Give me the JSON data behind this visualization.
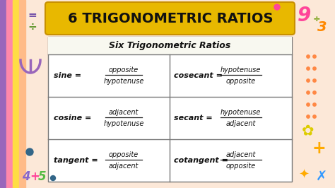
{
  "bg_color": "#fce8d8",
  "title": "6 TRIGONOMETRIC RATIOS",
  "title_bg": "#e8b800",
  "title_border": "#c89000",
  "table_header": "Six Trigonometric Ratios",
  "left_col": [
    {
      "func": "sine",
      "num": "opposite",
      "den": "hypotenuse"
    },
    {
      "func": "cosine",
      "num": "adjacent",
      "den": "hypotenuse"
    },
    {
      "func": "tangent",
      "num": "opposite",
      "den": "adjacent"
    }
  ],
  "right_col": [
    {
      "func": "cosecant",
      "num": "hypotenuse",
      "den": "opposite"
    },
    {
      "func": "secant",
      "num": "hypotenuse",
      "den": "adjacent"
    },
    {
      "func": "cotangent",
      "num": "adjacent",
      "den": "opposite"
    }
  ],
  "strip_purple": "#9966bb",
  "strip_pink": "#ff88aa",
  "strip_yellow": "#ffdd44",
  "strip_peach": "#ffbb88",
  "deco_eq_color": "#7755aa",
  "deco_div_color": "#669933",
  "arc_color": "#9966bb",
  "four_color": "#8866cc",
  "plus_color": "#ff4499",
  "five_color": "#55bb44",
  "dot_color": "#336688",
  "nine_color": "#ff4499",
  "three_color": "#ff8800",
  "div_color": "#669900",
  "dots_color": "#ff8844",
  "flower_color": "#ddcc00",
  "plus_right_color": "#ffaa00",
  "star_color": "#ffaa00",
  "cross_color": "#3399ff",
  "top_dot_color": "#ff4499"
}
